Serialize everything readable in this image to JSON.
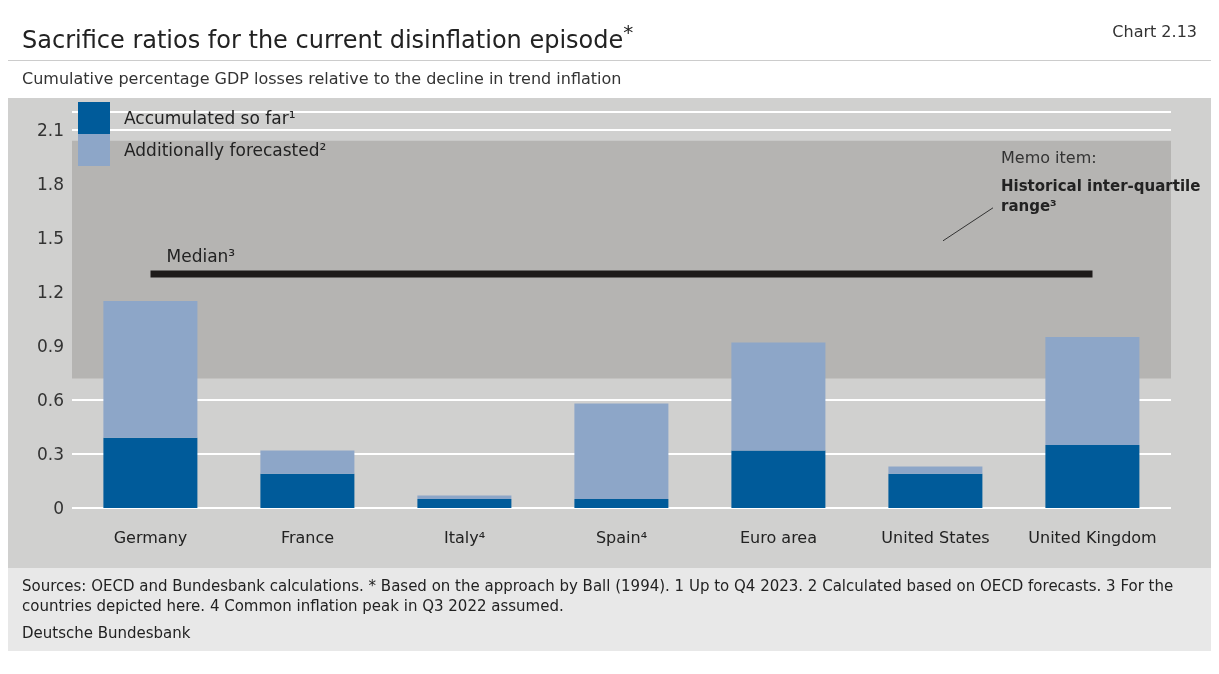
{
  "chart_data": {
    "type": "bar",
    "title": "Sacrifice ratios for the current disinflation episode$^{*}$",
    "subtitle": "Cumulative percentage GDP losses relative to the decline in trend inflation",
    "categories": [
      "Germany",
      "France",
      "Italy⁴",
      "Spain⁴",
      "Euro area",
      "United States",
      "United Kingdom"
    ],
    "stacked": true,
    "series": [
      {
        "name": "Accumulated so far¹",
        "color": "#005b9a",
        "values": [
          0.39,
          0.19,
          0.05,
          0.05,
          0.32,
          0.19,
          0.35
        ]
      },
      {
        "name": "Additionally forecasted²",
        "color": "#8da6c8",
        "values": [
          0.76,
          0.13,
          0.02,
          0.53,
          0.6,
          0.04,
          0.6
        ]
      }
    ],
    "ylim": [
      0,
      2.2
    ],
    "yticks": [
      {
        "value": 0,
        "label": "0"
      },
      0.3,
      0.6,
      0.9,
      1.2,
      1.5,
      1.8,
      2.1
    ],
    "grid": "y",
    "legend": "top left",
    "bands": [
      {
        "axis": "y",
        "from": 0.72,
        "to": 2.04,
        "label": "Historical inter-quartile range³",
        "color": "#b5b4b2"
      }
    ],
    "ref_lines": [
      {
        "axis": "y",
        "value": 1.3,
        "label": "Median³",
        "color": "#1e1b1a"
      }
    ],
    "annotations": [
      "Chart 2.13",
      "Memo item:",
      "Sources: OECD and Bundesbank calculations. * Based on the approach by Ball (1994). 1 Up to Q4 2023. 2 Calculated based on OECD forecasts. 3 For the countries depicted here. 4 Common inflation peak in Q3 2022 assumed.",
      "Deutsche Bundesbank"
    ]
  }
}
